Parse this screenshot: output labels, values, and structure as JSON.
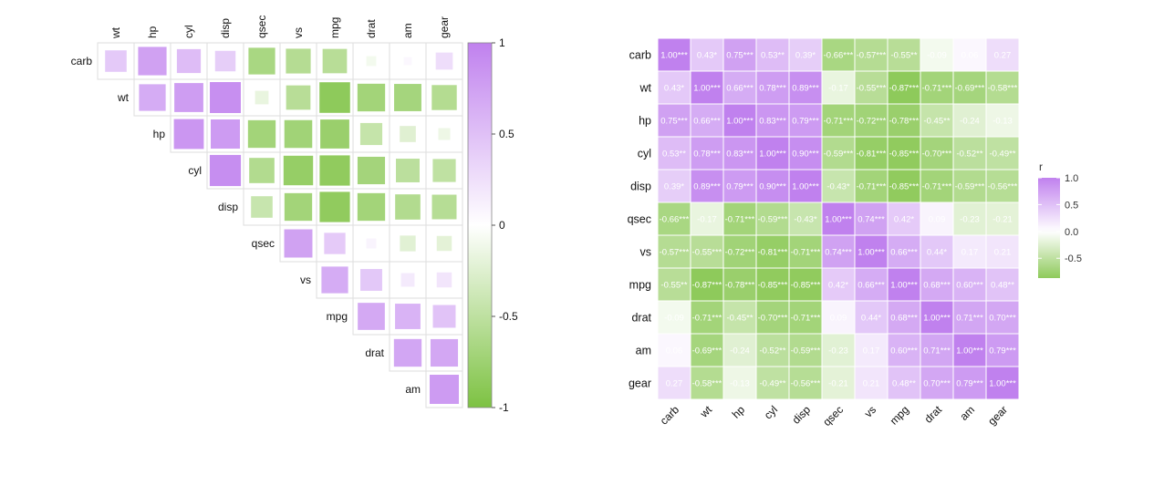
{
  "variables": [
    "carb",
    "wt",
    "hp",
    "cyl",
    "disp",
    "qsec",
    "vs",
    "mpg",
    "drat",
    "am",
    "gear"
  ],
  "colors": {
    "neg": "#7dc242",
    "mid": "#ffffff",
    "pos": "#c081ee",
    "grid": "#dddddd",
    "cellBorder": "#ffffff"
  },
  "chart_data": [
    {
      "type": "heatmap",
      "subtype": "correlation-square-upper-triangle",
      "title": "",
      "row_labels": [
        "carb",
        "wt",
        "hp",
        "cyl",
        "disp",
        "qsec",
        "vs",
        "mpg",
        "drat",
        "am"
      ],
      "col_labels": [
        "wt",
        "hp",
        "cyl",
        "disp",
        "qsec",
        "vs",
        "mpg",
        "drat",
        "am",
        "gear"
      ],
      "legend": {
        "title": "",
        "ticks": [
          "1",
          "0.5",
          "0",
          "-0.5",
          "-1"
        ],
        "tick_values": [
          1,
          0.5,
          0,
          -0.5,
          -1
        ],
        "range": [
          -1,
          1
        ]
      }
    },
    {
      "type": "heatmap",
      "subtype": "correlation-tile-full",
      "title": "",
      "x_labels": [
        "carb",
        "wt",
        "hp",
        "cyl",
        "disp",
        "qsec",
        "vs",
        "mpg",
        "drat",
        "am",
        "gear"
      ],
      "y_labels": [
        "carb",
        "wt",
        "hp",
        "cyl",
        "disp",
        "qsec",
        "vs",
        "mpg",
        "drat",
        "am",
        "gear"
      ],
      "matrix": [
        [
          1.0,
          0.43,
          0.75,
          0.53,
          0.39,
          -0.66,
          -0.57,
          -0.55,
          -0.09,
          0.06,
          0.27
        ],
        [
          0.43,
          1.0,
          0.66,
          0.78,
          0.89,
          -0.17,
          -0.55,
          -0.87,
          -0.71,
          -0.69,
          -0.58
        ],
        [
          0.75,
          0.66,
          1.0,
          0.83,
          0.79,
          -0.71,
          -0.72,
          -0.78,
          -0.45,
          -0.24,
          -0.13
        ],
        [
          0.53,
          0.78,
          0.83,
          1.0,
          0.9,
          -0.59,
          -0.81,
          -0.85,
          -0.7,
          -0.52,
          -0.49
        ],
        [
          0.39,
          0.89,
          0.79,
          0.9,
          1.0,
          -0.43,
          -0.71,
          -0.85,
          -0.71,
          -0.59,
          -0.56
        ],
        [
          -0.66,
          -0.17,
          -0.71,
          -0.59,
          -0.43,
          1.0,
          0.74,
          0.42,
          0.09,
          -0.23,
          -0.21
        ],
        [
          -0.57,
          -0.55,
          -0.72,
          -0.81,
          -0.71,
          0.74,
          1.0,
          0.66,
          0.44,
          0.17,
          0.21
        ],
        [
          -0.55,
          -0.87,
          -0.78,
          -0.85,
          -0.85,
          0.42,
          0.66,
          1.0,
          0.68,
          0.6,
          0.48
        ],
        [
          -0.09,
          -0.71,
          -0.45,
          -0.7,
          -0.71,
          0.09,
          0.44,
          0.68,
          1.0,
          0.71,
          0.7
        ],
        [
          0.06,
          -0.69,
          -0.24,
          -0.52,
          -0.59,
          -0.23,
          0.17,
          0.6,
          0.71,
          1.0,
          0.79
        ],
        [
          0.27,
          -0.58,
          -0.13,
          -0.49,
          -0.56,
          -0.21,
          0.21,
          0.48,
          0.7,
          0.79,
          1.0
        ]
      ],
      "labels": [
        [
          "1.00***",
          "0.43*",
          "0.75***",
          "0.53**",
          "0.39*",
          "-0.66***",
          "-0.57***",
          "-0.55**",
          "-0.09",
          "0.06",
          "0.27"
        ],
        [
          "0.43*",
          "1.00***",
          "0.66***",
          "0.78***",
          "0.89***",
          "-0.17",
          "-0.55***",
          "-0.87***",
          "-0.71***",
          "-0.69***",
          "-0.58***"
        ],
        [
          "0.75***",
          "0.66***",
          "1.00***",
          "0.83***",
          "0.79***",
          "-0.71***",
          "-0.72***",
          "-0.78***",
          "-0.45**",
          "-0.24",
          "-0.13"
        ],
        [
          "0.53**",
          "0.78***",
          "0.83***",
          "1.00***",
          "0.90***",
          "-0.59***",
          "-0.81***",
          "-0.85***",
          "-0.70***",
          "-0.52**",
          "-0.49**"
        ],
        [
          "0.39*",
          "0.89***",
          "0.79***",
          "0.90***",
          "1.00***",
          "-0.43*",
          "-0.71***",
          "-0.85***",
          "-0.71***",
          "-0.59***",
          "-0.56***"
        ],
        [
          "-0.66***",
          "-0.17",
          "-0.71***",
          "-0.59***",
          "-0.43*",
          "1.00***",
          "0.74***",
          "0.42*",
          "0.09",
          "-0.23",
          "-0.21"
        ],
        [
          "-0.57***",
          "-0.55***",
          "-0.72***",
          "-0.81***",
          "-0.71***",
          "0.74***",
          "1.00***",
          "0.66***",
          "0.44*",
          "0.17",
          "0.21"
        ],
        [
          "-0.55**",
          "-0.87***",
          "-0.78***",
          "-0.85***",
          "-0.85***",
          "0.42*",
          "0.66***",
          "1.00***",
          "0.68***",
          "0.60***",
          "0.48**"
        ],
        [
          "-0.09",
          "-0.71***",
          "-0.45**",
          "-0.70***",
          "-0.71***",
          "0.09",
          "0.44*",
          "0.68***",
          "1.00***",
          "0.71***",
          "0.70***"
        ],
        [
          "0.06",
          "-0.69***",
          "-0.24",
          "-0.52**",
          "-0.59***",
          "-0.23",
          "0.17",
          "0.60***",
          "0.71***",
          "1.00***",
          "0.79***"
        ],
        [
          "0.27",
          "-0.58***",
          "-0.13",
          "-0.49**",
          "-0.56***",
          "-0.21",
          "0.21",
          "0.48**",
          "0.70***",
          "0.79***",
          "1.00***"
        ]
      ],
      "legend": {
        "title": "r",
        "ticks": [
          "1.0",
          "0.5",
          "0.0",
          "-0.5"
        ],
        "tick_values": [
          1.0,
          0.5,
          0.0,
          -0.5
        ],
        "range": [
          -0.87,
          1.0
        ]
      }
    }
  ]
}
